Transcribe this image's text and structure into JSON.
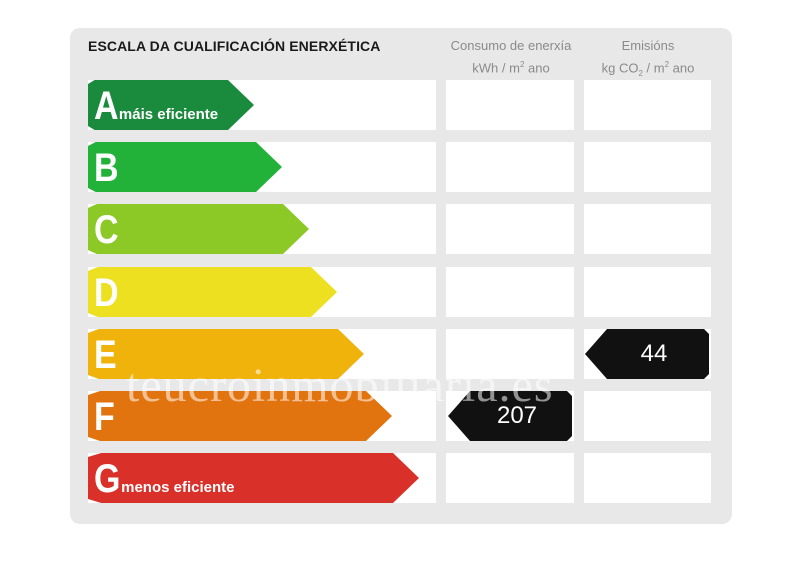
{
  "title": "ESCALA DA CUALIFICACIÓN ENERXÉTICA",
  "columns": {
    "consumo": {
      "line1": "Consumo de enerxía",
      "line2_pre": "kWh / m",
      "line2_sup": "2",
      "line2_post": " ano"
    },
    "emisions": {
      "line1": "Emisións",
      "line2_pre": "kg CO",
      "line2_sub": "2",
      "line2_mid": " / m",
      "line2_sup": "2",
      "line2_post": " ano"
    }
  },
  "ratings": [
    {
      "letter": "A",
      "label": "máis eficiente",
      "color": "#1a8a3c"
    },
    {
      "letter": "B",
      "label": "",
      "color": "#22b23a"
    },
    {
      "letter": "C",
      "label": "",
      "color": "#8cc927"
    },
    {
      "letter": "D",
      "label": "",
      "color": "#ece020"
    },
    {
      "letter": "E",
      "label": "",
      "color": "#efb30c"
    },
    {
      "letter": "F",
      "label": "",
      "color": "#e2740f"
    },
    {
      "letter": "G",
      "label": "menos eficiente",
      "color": "#d9302a"
    }
  ],
  "consumo_value": "207",
  "consumo_rating": "F",
  "emisions_value": "44",
  "emisions_rating": "E",
  "watermark": "teucroinmobiliaria.es"
}
